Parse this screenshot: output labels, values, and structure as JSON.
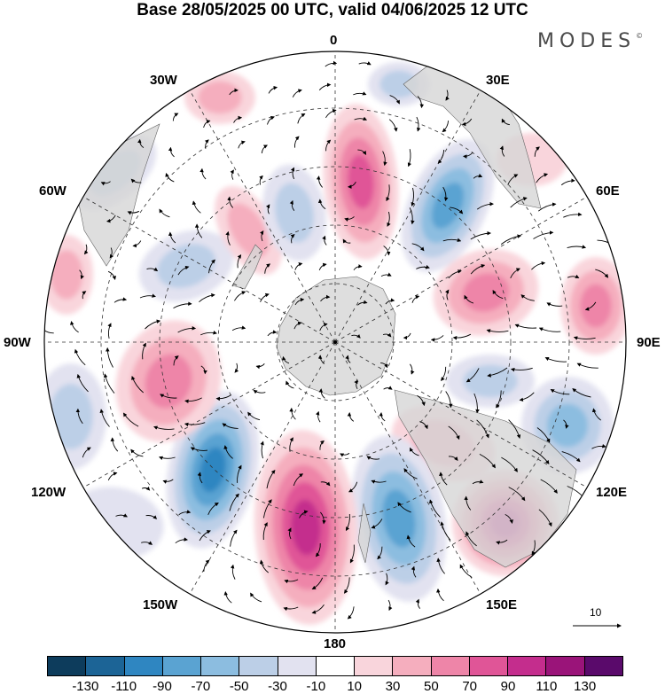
{
  "title": "Base 28/05/2025 00 UTC, valid 04/06/2025 12 UTC",
  "brand": "MODES",
  "brand_mark": "©",
  "meridian_labels": {
    "m0": "0",
    "m30e": "30E",
    "m60e": "60E",
    "m90e": "90E",
    "m120e": "120E",
    "m150e": "150E",
    "m180": "180",
    "m150w": "150W",
    "m120w": "120W",
    "m90w": "90W",
    "m60w": "60W",
    "m30w": "30W"
  },
  "vector_scale_label": "10",
  "colorbar": {
    "colors": [
      "#0d3c5c",
      "#1c6496",
      "#2f86c1",
      "#5aa3d2",
      "#8cbde0",
      "#bccfe7",
      "#e2e2f0",
      "#ffffff",
      "#f9d5dc",
      "#f5aebe",
      "#ee85a8",
      "#e05597",
      "#c42d8d",
      "#9a1479",
      "#5a0a6b"
    ],
    "tick_labels": [
      "-130",
      "-110",
      "-90",
      "-70",
      "-50",
      "-30",
      "-10",
      "10",
      "30",
      "50",
      "70",
      "90",
      "110",
      "130"
    ]
  }
}
